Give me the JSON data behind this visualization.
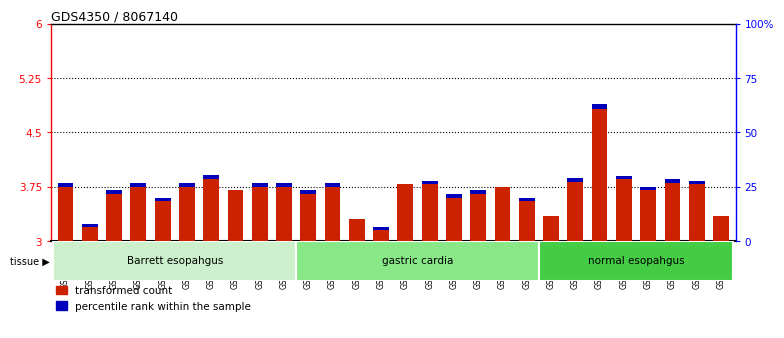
{
  "title": "GDS4350 / 8067140",
  "samples": [
    "GSM851983",
    "GSM851984",
    "GSM851985",
    "GSM851986",
    "GSM851987",
    "GSM851988",
    "GSM851989",
    "GSM851990",
    "GSM851991",
    "GSM851992",
    "GSM852001",
    "GSM852002",
    "GSM852003",
    "GSM852004",
    "GSM852005",
    "GSM852006",
    "GSM852007",
    "GSM852008",
    "GSM852009",
    "GSM852010",
    "GSM851993",
    "GSM851994",
    "GSM851995",
    "GSM851996",
    "GSM851997",
    "GSM851998",
    "GSM851999",
    "GSM852000"
  ],
  "red_values": [
    3.75,
    3.2,
    3.65,
    3.75,
    3.55,
    3.75,
    3.85,
    3.7,
    3.75,
    3.75,
    3.65,
    3.75,
    3.3,
    3.15,
    3.78,
    3.78,
    3.6,
    3.65,
    3.75,
    3.55,
    3.35,
    3.82,
    4.82,
    3.85,
    3.7,
    3.8,
    3.78,
    3.35
  ],
  "blue_values": [
    0.055,
    0.04,
    0.05,
    0.055,
    0.048,
    0.048,
    0.055,
    0.0,
    0.045,
    0.048,
    0.052,
    0.052,
    0.0,
    0.045,
    0.0,
    0.052,
    0.042,
    0.048,
    0.0,
    0.045,
    0.0,
    0.052,
    0.068,
    0.052,
    0.048,
    0.052,
    0.048,
    0.0
  ],
  "groups": [
    {
      "label": "Barrett esopahgus",
      "start": 0,
      "end": 10,
      "color": "#ccf0cc"
    },
    {
      "label": "gastric cardia",
      "start": 10,
      "end": 20,
      "color": "#88e888"
    },
    {
      "label": "normal esopahgus",
      "start": 20,
      "end": 28,
      "color": "#44cc44"
    }
  ],
  "ylim_left": [
    3.0,
    6.0
  ],
  "ylim_right": [
    0,
    100
  ],
  "yticks_left": [
    3.0,
    3.75,
    4.5,
    5.25,
    6.0
  ],
  "ytick_labels_left": [
    "3",
    "3.75",
    "4.5",
    "5.25",
    "6"
  ],
  "yticks_right": [
    0,
    25,
    50,
    75,
    100
  ],
  "ytick_labels_right": [
    "0",
    "25",
    "50",
    "75",
    "100%"
  ],
  "hlines": [
    3.75,
    4.5,
    5.25
  ],
  "bar_color_red": "#cc2200",
  "bar_color_blue": "#0000bb",
  "bar_width": 0.65,
  "bg_color": "#ffffff",
  "plot_bg": "#ffffff",
  "legend_red": "transformed count",
  "legend_blue": "percentile rank within the sample",
  "base": 3.0
}
